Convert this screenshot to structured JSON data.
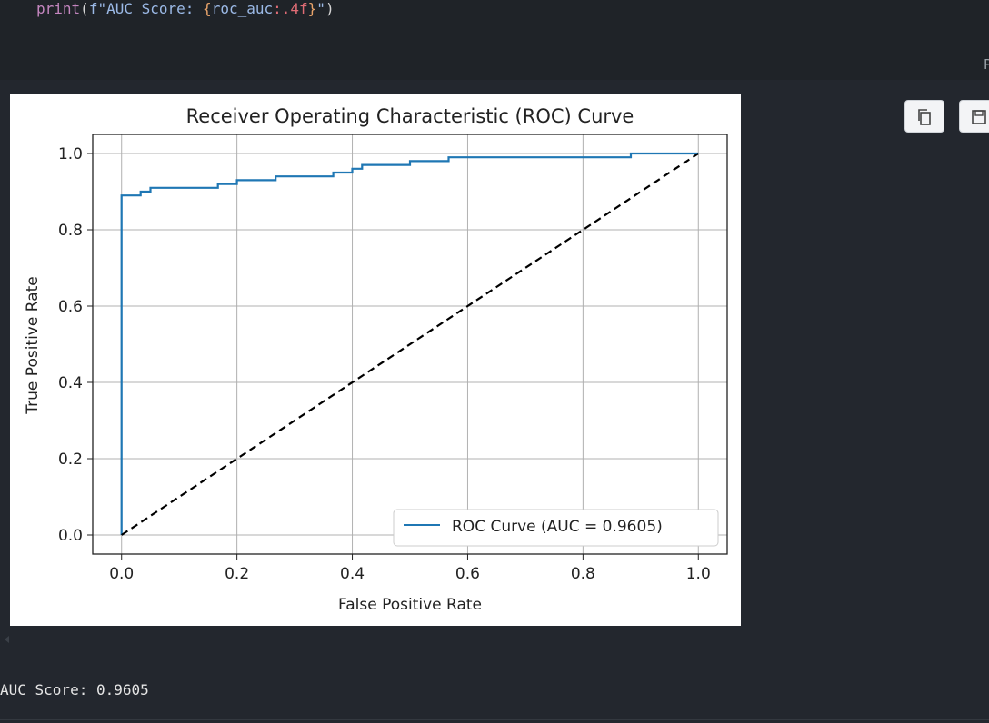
{
  "code": {
    "line": "print(f\"AUC Score: {roc_auc:.4f}\")",
    "tokens": {
      "func": "print",
      "open": "(",
      "prefix": "f\"AUC Score: ",
      "brace_open": "{",
      "var": "roc_auc",
      "spec": ":.4f",
      "brace_close": "}",
      "quote_close": "\"",
      "close": ")"
    }
  },
  "cut_glyph": "P",
  "toolbar": {
    "copy_icon": "copy-icon",
    "save_icon": "save-icon"
  },
  "output": {
    "stdout": "AUC Score: 0.9605"
  },
  "chart_data": {
    "type": "line",
    "title": "Receiver Operating Characteristic (ROC) Curve",
    "xlabel": "False Positive Rate",
    "ylabel": "True Positive Rate",
    "xlim": [
      -0.05,
      1.05
    ],
    "ylim": [
      -0.05,
      1.05
    ],
    "xticks": [
      0.0,
      0.2,
      0.4,
      0.6,
      0.8,
      1.0
    ],
    "yticks": [
      0.0,
      0.2,
      0.4,
      0.6,
      0.8,
      1.0
    ],
    "tick_labels_x": [
      "0.0",
      "0.2",
      "0.4",
      "0.6",
      "0.8",
      "1.0"
    ],
    "tick_labels_y": [
      "0.0",
      "0.2",
      "0.4",
      "0.6",
      "0.8",
      "1.0"
    ],
    "grid": true,
    "legend": "lower-right",
    "series": [
      {
        "name": "ROC Curve (AUC = 0.9605)",
        "color": "#1f77b4",
        "style": "solid",
        "x": [
          0.0,
          0.0,
          0.0,
          0.033,
          0.033,
          0.05,
          0.05,
          0.167,
          0.167,
          0.2,
          0.2,
          0.267,
          0.267,
          0.367,
          0.367,
          0.4,
          0.4,
          0.417,
          0.417,
          0.5,
          0.5,
          0.567,
          0.567,
          0.883,
          0.883,
          1.0
        ],
        "y": [
          0.0,
          0.89,
          0.89,
          0.89,
          0.9,
          0.9,
          0.91,
          0.91,
          0.92,
          0.92,
          0.93,
          0.93,
          0.94,
          0.94,
          0.95,
          0.95,
          0.96,
          0.96,
          0.97,
          0.97,
          0.98,
          0.98,
          0.99,
          0.99,
          1.0,
          1.0
        ]
      },
      {
        "name": "",
        "color": "#000000",
        "style": "dashed",
        "x": [
          0.0,
          1.0
        ],
        "y": [
          0.0,
          1.0
        ]
      }
    ]
  }
}
